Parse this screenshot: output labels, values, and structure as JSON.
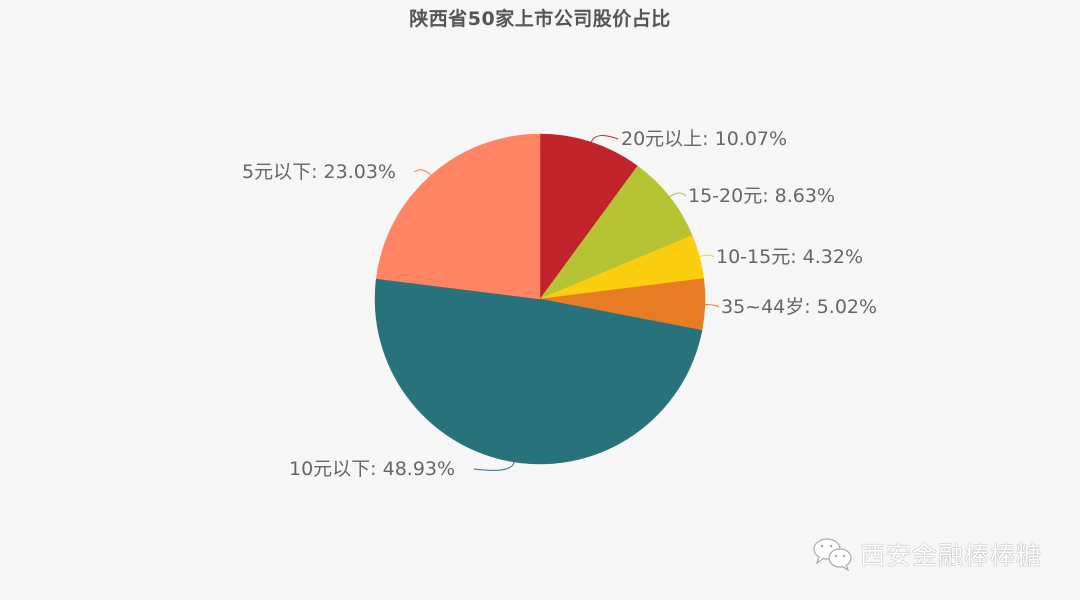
{
  "chart_data": {
    "type": "pie",
    "title": "陕西省50家上市公司股价占比",
    "start_angle_deg": 90,
    "direction": "clockwise",
    "center": [
      540,
      299
    ],
    "radius": 165,
    "slices": [
      {
        "label": "20元以上",
        "value": 10.07,
        "display": "20元以上: 10.07%",
        "color": "#c1232b"
      },
      {
        "label": "15-20元",
        "value": 8.63,
        "display": "15-20元: 8.63%",
        "color": "#b5c334"
      },
      {
        "label": "10-15元",
        "value": 4.32,
        "display": "10-15元: 4.32%",
        "color": "#fcce10"
      },
      {
        "label": "35~44岁",
        "value": 5.02,
        "display": "35~44岁: 5.02%",
        "color": "#e87c25"
      },
      {
        "label": "10元以下",
        "value": 48.93,
        "display": "10元以下: 48.93%",
        "color": "#27727b"
      },
      {
        "label": "5元以下",
        "value": 23.03,
        "display": "5元以下: 23.03%",
        "color": "#fe8463"
      }
    ]
  },
  "header": {
    "title": "陕西省50家上市公司股价占比"
  },
  "labels": {
    "s0": "20元以上: 10.07%",
    "s1": "15-20元: 8.63%",
    "s2": "10-15元: 4.32%",
    "s3": "35~44岁: 5.02%",
    "s4": "10元以下: 48.93%",
    "s5": "5元以下: 23.03%"
  },
  "watermark": {
    "icon": "wechat-icon",
    "text": "西安金融棒棒糖"
  }
}
